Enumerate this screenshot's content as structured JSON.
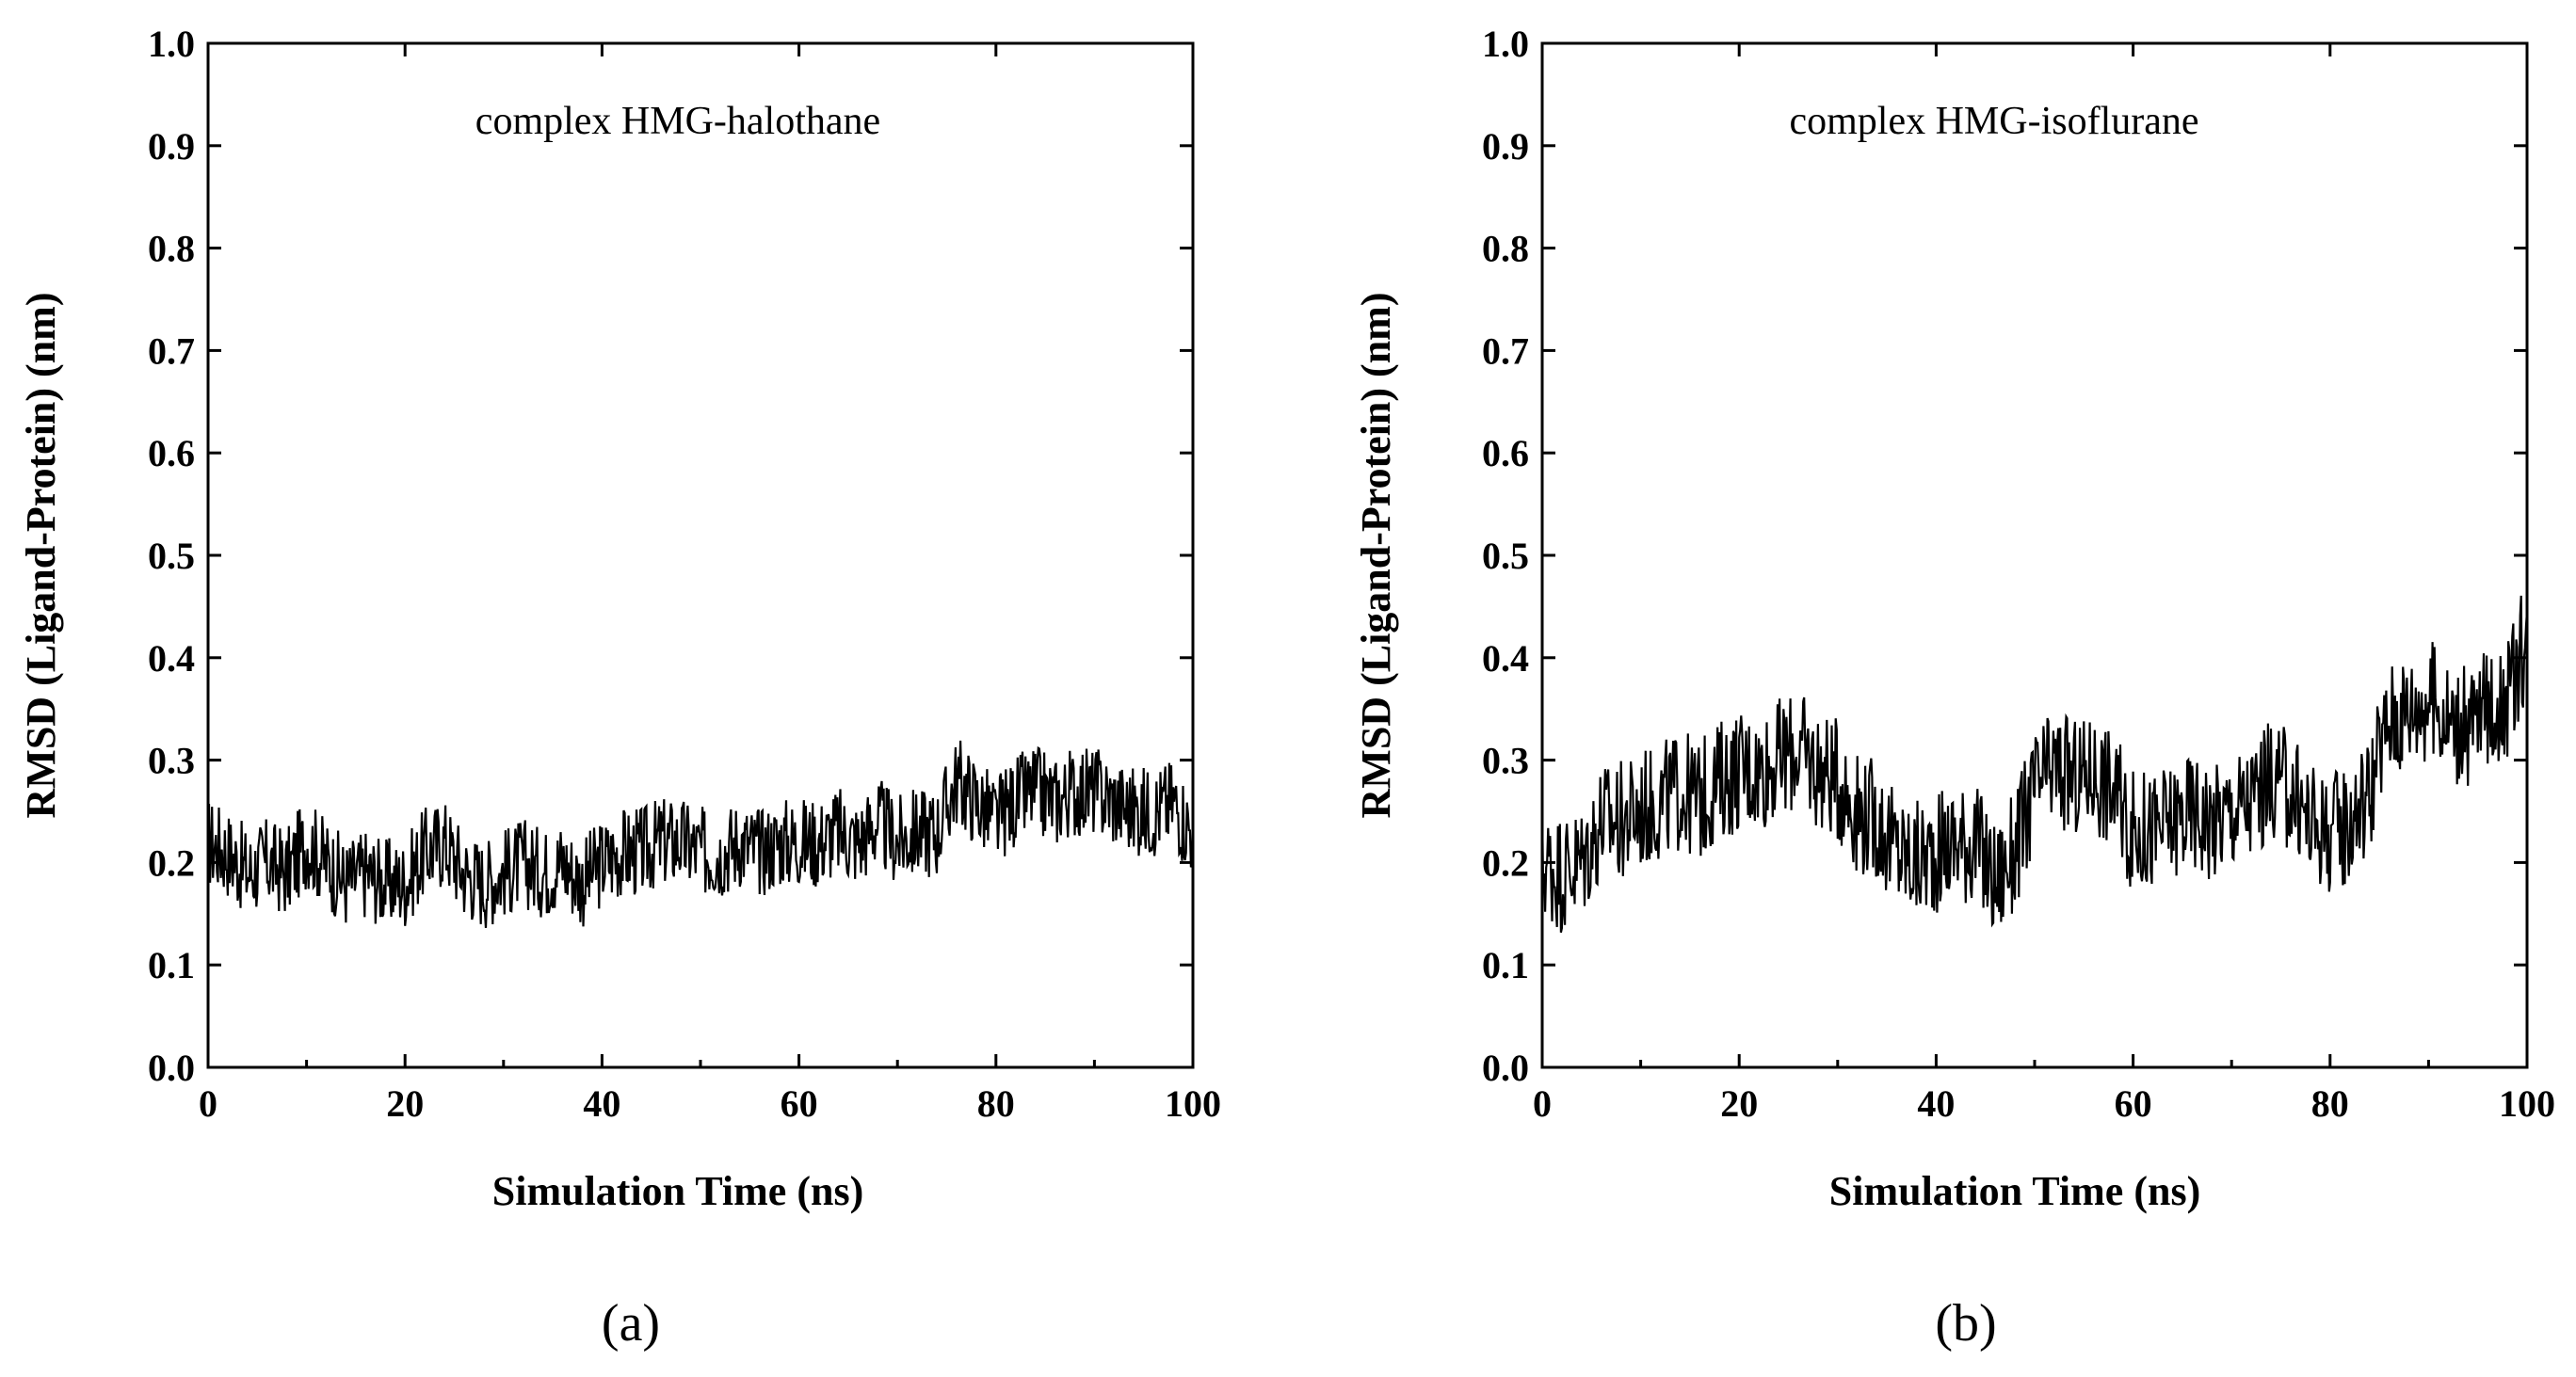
{
  "chart_data": [
    {
      "type": "line",
      "title": "complex HMG-halothane",
      "xlabel": "Simulation Time (ns)",
      "ylabel": "RMSD (Ligand-Protein) (nm)",
      "panel_label": "(a)",
      "xlim": [
        0,
        100
      ],
      "ylim": [
        0.0,
        1.0
      ],
      "xticks": [
        0,
        20,
        40,
        60,
        80,
        100
      ],
      "yticks": [
        "0.0",
        "0.1",
        "0.2",
        "0.3",
        "0.4",
        "0.5",
        "0.6",
        "0.7",
        "0.8",
        "0.9",
        "1.0"
      ],
      "series": [
        {
          "name": "complex HMG-halothane",
          "color": "#000000",
          "x": [
            0,
            2,
            4,
            6,
            8,
            10,
            12,
            14,
            16,
            18,
            20,
            22,
            24,
            26,
            28,
            30,
            32,
            34,
            36,
            38,
            40,
            42,
            44,
            46,
            48,
            50,
            52,
            54,
            56,
            58,
            60,
            62,
            64,
            66,
            68,
            70,
            72,
            74,
            76,
            78,
            80,
            82,
            84,
            86,
            88,
            90,
            92,
            94,
            96,
            98,
            100
          ],
          "values": [
            0.22,
            0.21,
            0.19,
            0.2,
            0.19,
            0.22,
            0.2,
            0.18,
            0.19,
            0.18,
            0.18,
            0.21,
            0.22,
            0.19,
            0.18,
            0.19,
            0.2,
            0.19,
            0.2,
            0.18,
            0.2,
            0.21,
            0.21,
            0.22,
            0.22,
            0.21,
            0.21,
            0.22,
            0.21,
            0.22,
            0.22,
            0.22,
            0.23,
            0.22,
            0.24,
            0.22,
            0.23,
            0.23,
            0.28,
            0.26,
            0.24,
            0.26,
            0.27,
            0.26,
            0.27,
            0.27,
            0.26,
            0.25,
            0.25,
            0.26,
            0.23
          ]
        }
      ]
    },
    {
      "type": "line",
      "title": "complex HMG-isoflurane",
      "xlabel": "Simulation Time (ns)",
      "ylabel": "RMSD (Ligand-Protein) (nm)",
      "panel_label": "(b)",
      "xlim": [
        0,
        100
      ],
      "ylim": [
        0.0,
        1.0
      ],
      "xticks": [
        0,
        20,
        40,
        60,
        80,
        100
      ],
      "yticks": [
        "0.0",
        "0.1",
        "0.2",
        "0.3",
        "0.4",
        "0.5",
        "0.6",
        "0.7",
        "0.8",
        "0.9",
        "1.0"
      ],
      "series": [
        {
          "name": "complex HMG-isoflurane",
          "color": "#000000",
          "x": [
            0,
            2,
            4,
            6,
            8,
            10,
            12,
            14,
            16,
            18,
            20,
            22,
            24,
            26,
            28,
            30,
            32,
            34,
            36,
            38,
            40,
            42,
            44,
            46,
            48,
            50,
            52,
            54,
            56,
            58,
            60,
            62,
            64,
            66,
            68,
            70,
            72,
            74,
            76,
            78,
            80,
            82,
            84,
            86,
            88,
            90,
            92,
            94,
            96,
            98,
            100
          ],
          "values": [
            0.2,
            0.19,
            0.2,
            0.24,
            0.24,
            0.25,
            0.26,
            0.27,
            0.26,
            0.28,
            0.29,
            0.29,
            0.3,
            0.31,
            0.29,
            0.28,
            0.25,
            0.24,
            0.21,
            0.2,
            0.21,
            0.22,
            0.22,
            0.18,
            0.21,
            0.27,
            0.29,
            0.28,
            0.29,
            0.27,
            0.23,
            0.23,
            0.24,
            0.25,
            0.24,
            0.25,
            0.26,
            0.28,
            0.27,
            0.24,
            0.23,
            0.24,
            0.27,
            0.34,
            0.35,
            0.36,
            0.34,
            0.33,
            0.35,
            0.36,
            0.42
          ]
        }
      ]
    }
  ]
}
